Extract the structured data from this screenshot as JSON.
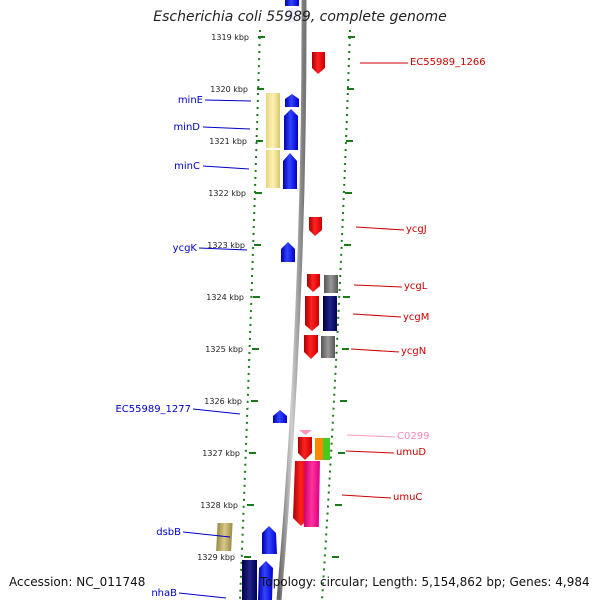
{
  "header": {
    "title": "Escherichia coli 55989, complete genome"
  },
  "footer": {
    "accession": "Accession: NC_011748",
    "summary": "Topology: circular; Length: 5,154,862 bp; Genes: 4,984"
  },
  "map": {
    "ticks": [
      "1319 kbp",
      "1320 kbp",
      "1321 kbp",
      "1322 kbp",
      "1323 kbp",
      "1324 kbp",
      "1325 kbp",
      "1326 kbp",
      "1327 kbp",
      "1328 kbp",
      "1329 kbp"
    ],
    "genes_left": [
      {
        "name": "minE",
        "color": "#0000ff"
      },
      {
        "name": "minD",
        "color": "#0000ff"
      },
      {
        "name": "minC",
        "color": "#0000ff"
      },
      {
        "name": "ycgK",
        "color": "#0000ff"
      },
      {
        "name": "EC55989_1277",
        "color": "#0000ff"
      },
      {
        "name": "dsbB",
        "color": "#0000ff"
      },
      {
        "name": "nhaB",
        "color": "#0000ff"
      }
    ],
    "genes_right": [
      {
        "name": "EC55989_1266",
        "color": "#ff0000"
      },
      {
        "name": "ycgJ",
        "color": "#ff0000"
      },
      {
        "name": "ycgL",
        "color": "#ff0000"
      },
      {
        "name": "ycgM",
        "color": "#ff0000"
      },
      {
        "name": "ycgN",
        "color": "#ff0000"
      },
      {
        "name": "C0299",
        "color": "#ff99bb"
      },
      {
        "name": "umuD",
        "color": "#ff0000"
      },
      {
        "name": "umuC",
        "color": "#ff0000"
      }
    ]
  }
}
